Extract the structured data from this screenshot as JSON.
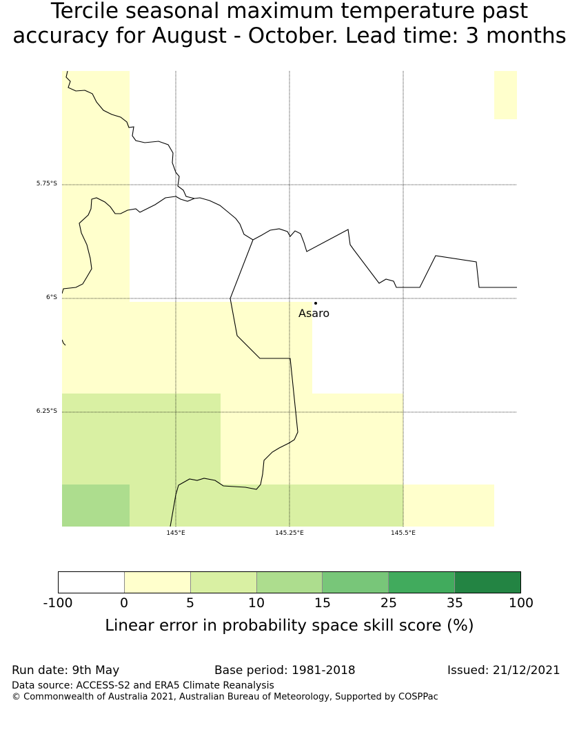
{
  "title_line1": "Tercile seasonal maximum temperature past",
  "title_line2": "accuracy for August - October. Lead time: 3 months",
  "map": {
    "lat_labels": [
      "5.75°S",
      "6°S",
      "6.25°S"
    ],
    "lon_labels": [
      "145°E",
      "145.25°E",
      "145.5°E"
    ],
    "place": "Asaro"
  },
  "legend": {
    "ticks": [
      "-100",
      "0",
      "5",
      "10",
      "15",
      "25",
      "35",
      "100"
    ],
    "colors": [
      "#ffffff",
      "#ffffcc",
      "#d9f0a3",
      "#addd8e",
      "#78c679",
      "#41ab5d",
      "#238443"
    ],
    "label": "Linear error in probability space skill score (%)"
  },
  "footer": {
    "run_date": "Run date: 9th May",
    "base_period": "Base period: 1981-2018",
    "issued": "Issued: 21/12/2021",
    "data_source": "Data source: ACCESS-S2 and ERA5 Climate Reanalysis",
    "copyright": "© Commonwealth of Australia 2021, Australian Bureau of Meteorology, Supported by COSPPac"
  }
}
